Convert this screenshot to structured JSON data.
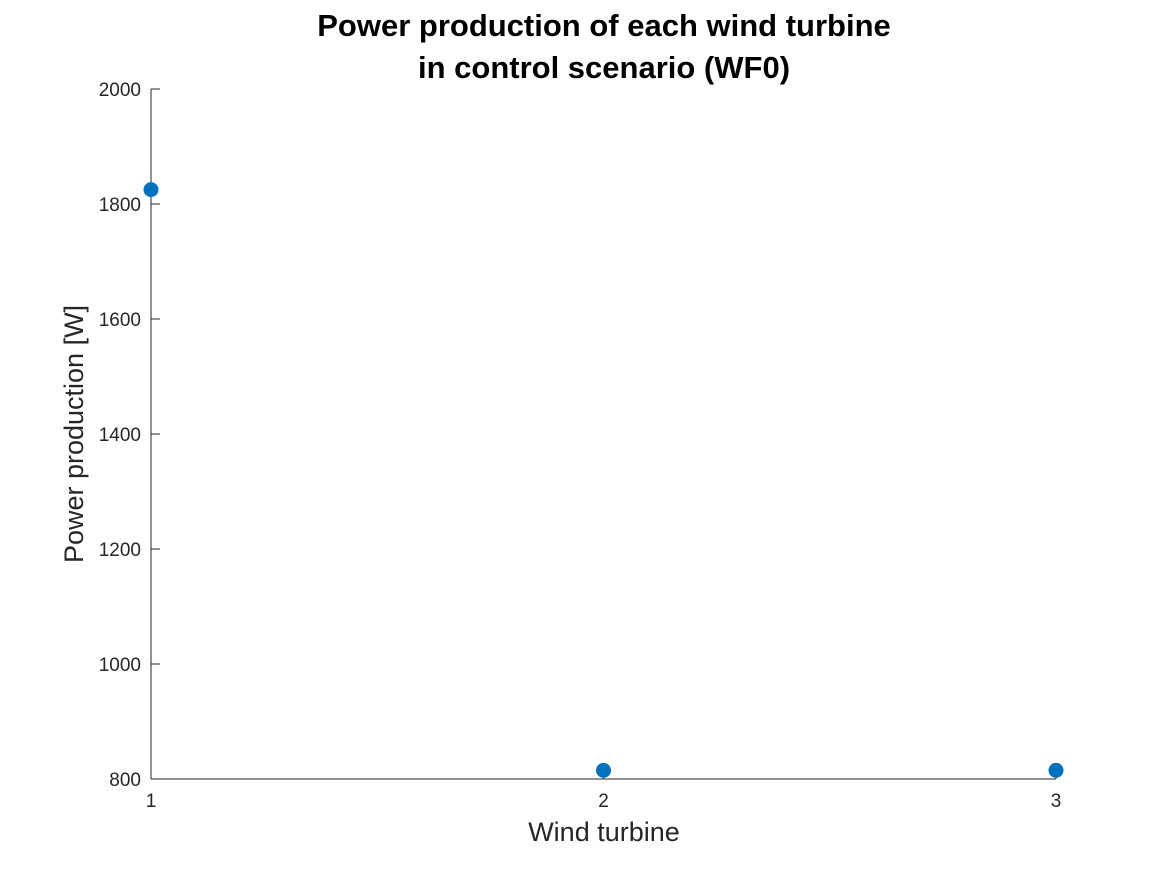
{
  "chart_data": {
    "type": "scatter",
    "title_lines": [
      "Power production of each wind turbine",
      "in control scenario (WF0)"
    ],
    "xlabel": "Wind turbine",
    "ylabel": "Power production [W]",
    "xlim": [
      1,
      3
    ],
    "ylim": [
      800,
      2000
    ],
    "xticks": [
      1,
      2,
      3
    ],
    "yticks": [
      800,
      1000,
      1200,
      1400,
      1600,
      1800,
      2000
    ],
    "x": [
      1,
      2,
      3
    ],
    "y": [
      1825,
      815,
      815
    ],
    "marker_color": "#0072BD",
    "grid": false,
    "legend": "none"
  }
}
